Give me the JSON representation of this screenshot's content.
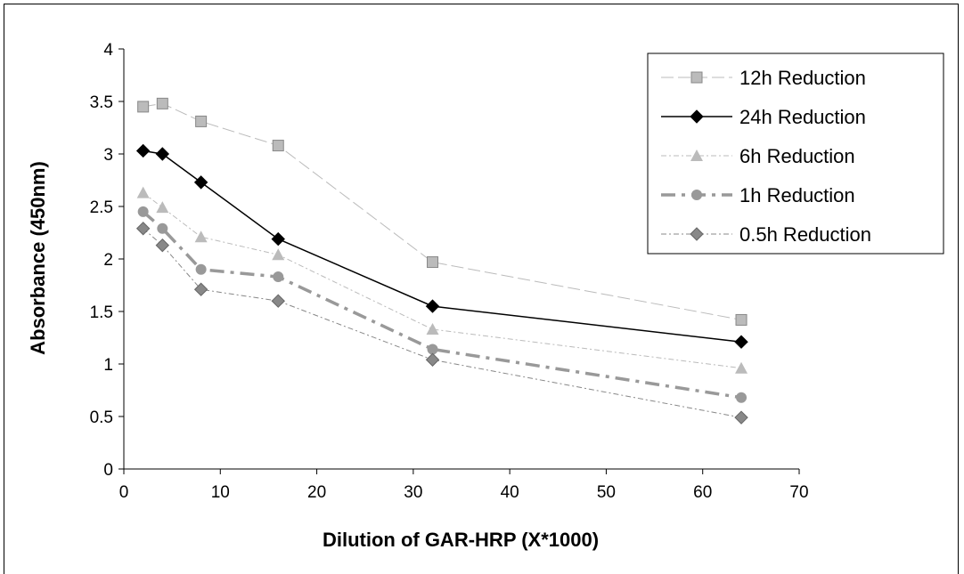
{
  "chart_data": {
    "type": "line",
    "title": "",
    "xlabel": "Dilution of GAR-HRP (X*1000)",
    "ylabel": "Absorbance (450nm)",
    "xlim": [
      0,
      70
    ],
    "ylim": [
      0,
      4
    ],
    "x_ticks": [
      "0",
      "10",
      "20",
      "30",
      "40",
      "50",
      "60",
      "70"
    ],
    "y_ticks": [
      "0",
      "0.5",
      "1",
      "1.5",
      "2",
      "2.5",
      "3",
      "3.5",
      "4"
    ],
    "grid": false,
    "legend_position": "top-right",
    "x": [
      2,
      4,
      8,
      16,
      32,
      64
    ],
    "series": [
      {
        "name": "12h Reduction",
        "values": [
          3.45,
          3.48,
          3.31,
          3.08,
          1.97,
          1.42
        ],
        "color": "#bbbbbb",
        "marker": "square",
        "line": "long-dash"
      },
      {
        "name": "24h Reduction",
        "values": [
          3.03,
          3.0,
          2.73,
          2.19,
          1.55,
          1.21
        ],
        "color": "#000000",
        "marker": "diamond",
        "line": "solid"
      },
      {
        "name": "6h Reduction",
        "values": [
          2.63,
          2.49,
          2.21,
          2.04,
          1.33,
          0.96
        ],
        "color": "#bbbbbb",
        "marker": "triangle",
        "line": "dash-dot"
      },
      {
        "name": "1h Reduction",
        "values": [
          2.45,
          2.29,
          1.9,
          1.83,
          1.14,
          0.68
        ],
        "color": "#999999",
        "marker": "circle",
        "line": "bold-dash-dot"
      },
      {
        "name": "0.5h Reduction",
        "values": [
          2.29,
          2.13,
          1.71,
          1.6,
          1.04,
          0.49
        ],
        "color": "#888888",
        "marker": "diamond",
        "line": "dash-dot"
      }
    ]
  }
}
